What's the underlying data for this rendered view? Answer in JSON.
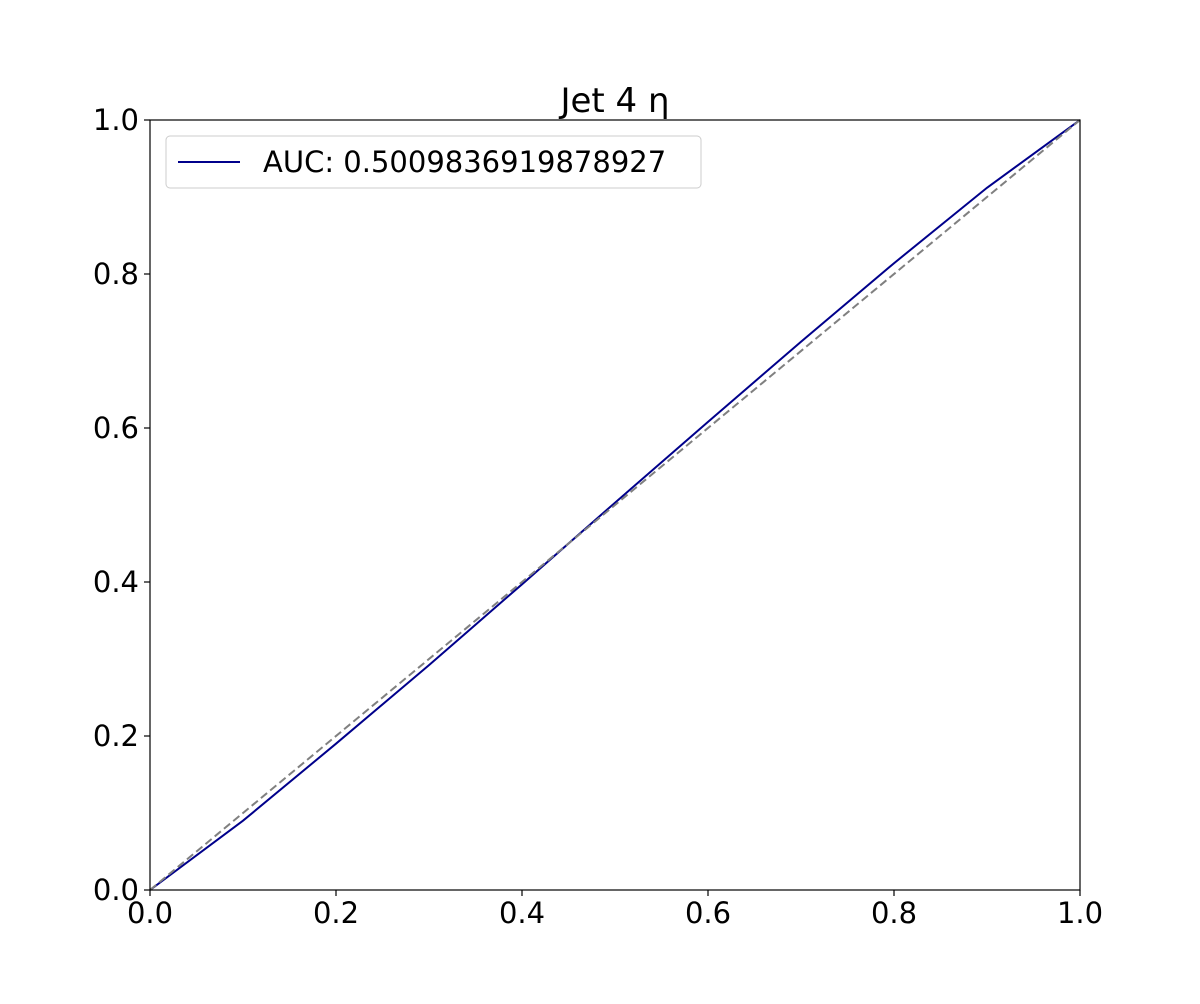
{
  "chart_data": {
    "type": "line",
    "title": "Jet 4 η",
    "series": [
      {
        "name": "AUC: 0.5009836919878927",
        "color": "#00008b",
        "x": [
          0,
          0.1,
          0.2,
          0.3,
          0.4,
          0.5,
          0.6,
          0.7,
          0.8,
          0.9,
          1.0
        ],
        "values": [
          0,
          0.09,
          0.19,
          0.292,
          0.397,
          0.503,
          0.608,
          0.712,
          0.814,
          0.912,
          1.0
        ]
      },
      {
        "color": "#808080",
        "dashed": true,
        "x": [
          0,
          1
        ],
        "values": [
          0,
          1
        ]
      }
    ],
    "xlim": [
      0,
      1
    ],
    "ylim": [
      0,
      1
    ],
    "xticks": [
      {
        "value": 0,
        "label": "0.0"
      },
      0.2,
      0.4,
      0.6,
      0.8,
      {
        "value": 1,
        "label": "1.0"
      }
    ],
    "yticks": [
      {
        "value": 0,
        "label": "0.0"
      },
      0.2,
      0.4,
      0.6,
      0.8,
      {
        "value": 1,
        "label": "1.0"
      }
    ],
    "grid": false,
    "legend": "upper left"
  }
}
